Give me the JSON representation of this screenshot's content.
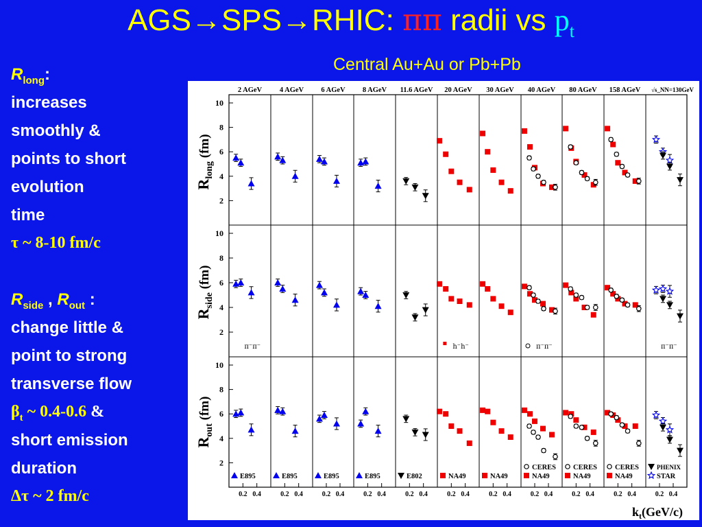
{
  "title": {
    "part1": "AGS",
    "arrow1": "→",
    "part2": "SPS",
    "arrow2": "→",
    "part3": "RHIC: ",
    "pipi": "ππ",
    "radii": " radii vs ",
    "p": "p",
    "t": "t"
  },
  "subtitle": "Central Au+Au or Pb+Pb",
  "text": {
    "rlong_R": "R",
    "rlong_sub": "long",
    "rlong_colon": ":",
    "rlong_lines": [
      "increases",
      "smoothly &",
      "points to short",
      "evolution",
      "time"
    ],
    "tau": "τ ~ 8-10 fm/c",
    "rside_R": "R",
    "rside_sub": "side",
    "comma": " , ",
    "rout_R": "R",
    "rout_sub": "out",
    "colon2": " :",
    "rso_lines": [
      "change little &",
      "point to strong",
      "transverse flow"
    ],
    "beta": "β",
    "beta_sub": "t",
    "beta_val": " ~ 0.4-0.6 ",
    "amp": "&",
    "emission_lines": [
      "short emission",
      "duration"
    ],
    "dtau": "Δτ ~ 2 fm/c"
  },
  "chart_data": {
    "type": "scatter",
    "xlabel": "k",
    "xlabel_sub": "t",
    "xlabel_unit": "(GeV/c)",
    "ylabels": [
      {
        "main": "R",
        "sub": "long",
        "unit": " (fm)"
      },
      {
        "main": "R",
        "sub": "side",
        "unit": " (fm)"
      },
      {
        "main": "R",
        "sub": "out",
        "unit": " (fm)"
      }
    ],
    "yticks": [
      2,
      4,
      6,
      8,
      10
    ],
    "ylim": [
      0,
      10
    ],
    "xticks": [
      0.2,
      0.4
    ],
    "xlim": [
      0,
      0.6
    ],
    "panels": [
      "2 AGeV",
      "4 AGeV",
      "6 AGeV",
      "8 AGeV",
      "11.6 AGeV",
      "20 AGeV",
      "30 AGeV",
      "40 AGeV",
      "80 AGeV",
      "158 AGeV",
      "√s_NN=130GeV"
    ],
    "pion_labels": [
      {
        "col": 0,
        "text": "π⁻π⁻"
      },
      {
        "col": 5,
        "text": "h⁻h⁻"
      },
      {
        "col": 7,
        "text": "π⁻π⁻"
      },
      {
        "col": 10,
        "text": "π⁻π⁻"
      }
    ],
    "series": [
      {
        "name": "E895",
        "marker": "tri-up",
        "color": "#0000ee",
        "columns": [
          0,
          1,
          2,
          3
        ]
      },
      {
        "name": "E802",
        "marker": "tri-down",
        "color": "#000000",
        "columns": [
          4
        ]
      },
      {
        "name": "NA49",
        "marker": "square",
        "color": "#ee0000",
        "columns": [
          5,
          6,
          7,
          8,
          9
        ]
      },
      {
        "name": "CERES",
        "marker": "circle-open",
        "color": "#000000",
        "columns": [
          7,
          8,
          9
        ]
      },
      {
        "name": "PHENIX",
        "marker": "tri-down",
        "color": "#000000",
        "columns": [
          10
        ]
      },
      {
        "name": "STAR",
        "marker": "star-open",
        "color": "#0000ee",
        "columns": [
          10
        ]
      }
    ],
    "points": [
      {
        "col": 0,
        "s": "E895",
        "x": [
          0.1,
          0.17,
          0.32
        ],
        "long": [
          5.5,
          5.1,
          3.4
        ],
        "side": [
          5.9,
          6.0,
          5.2
        ],
        "out": [
          6.0,
          6.1,
          4.7
        ]
      },
      {
        "col": 1,
        "s": "E895",
        "x": [
          0.1,
          0.17,
          0.35
        ],
        "long": [
          5.6,
          5.3,
          4.0
        ],
        "side": [
          6.0,
          5.5,
          4.6
        ],
        "out": [
          6.3,
          6.2,
          4.6
        ]
      },
      {
        "col": 2,
        "s": "E895",
        "x": [
          0.1,
          0.17,
          0.35
        ],
        "long": [
          5.4,
          5.2,
          3.6
        ],
        "side": [
          5.8,
          5.2,
          4.2
        ],
        "out": [
          5.6,
          5.9,
          5.2
        ]
      },
      {
        "col": 3,
        "s": "E895",
        "x": [
          0.1,
          0.17,
          0.35
        ],
        "long": [
          5.1,
          5.2,
          3.2
        ],
        "side": [
          5.3,
          5.0,
          4.1
        ],
        "out": [
          5.2,
          6.2,
          4.6
        ]
      },
      {
        "col": 4,
        "s": "E802",
        "x": [
          0.15,
          0.28,
          0.43
        ],
        "long": [
          3.6,
          3.1,
          2.4
        ],
        "side": [
          5.0,
          3.2,
          3.8
        ],
        "out": [
          5.6,
          4.5,
          4.3
        ]
      },
      {
        "col": 5,
        "s": "NA49",
        "x": [
          0.03,
          0.12,
          0.2,
          0.32,
          0.46
        ],
        "long": [
          6.9,
          5.8,
          4.4,
          3.5,
          2.9
        ],
        "side": [
          5.9,
          5.5,
          4.7,
          4.5,
          4.2
        ],
        "out": [
          6.2,
          6.0,
          5.0,
          4.6,
          3.6
        ]
      },
      {
        "col": 6,
        "s": "NA49",
        "x": [
          0.05,
          0.12,
          0.2,
          0.32,
          0.45
        ],
        "long": [
          7.5,
          6.0,
          4.5,
          3.5,
          2.8
        ],
        "side": [
          5.9,
          5.5,
          4.7,
          4.1,
          3.6
        ],
        "out": [
          6.3,
          6.2,
          5.3,
          4.6,
          4.1
        ]
      },
      {
        "col": 7,
        "s": "NA49",
        "x": [
          0.05,
          0.13,
          0.2,
          0.32,
          0.45
        ],
        "long": [
          7.7,
          6.4,
          4.7,
          3.4,
          3.1
        ],
        "side": [
          5.7,
          5.1,
          4.6,
          4.3,
          3.8
        ],
        "out": [
          6.3,
          6.0,
          5.4,
          4.8,
          4.3
        ]
      },
      {
        "col": 7,
        "s": "CERES",
        "x": [
          0.12,
          0.18,
          0.25,
          0.33,
          0.5
        ],
        "long": [
          5.5,
          4.6,
          4.0,
          3.5,
          3.1
        ],
        "side": [
          5.6,
          5.0,
          4.5,
          3.9,
          3.7
        ],
        "out": [
          5.0,
          4.5,
          4.1,
          3.0,
          2.5
        ]
      },
      {
        "col": 8,
        "s": "NA49",
        "x": [
          0.05,
          0.13,
          0.2,
          0.32,
          0.45
        ],
        "long": [
          7.9,
          6.3,
          5.2,
          4.1,
          3.3
        ],
        "side": [
          5.8,
          5.2,
          4.7,
          4.0,
          3.4
        ],
        "out": [
          6.1,
          6.0,
          5.5,
          4.9,
          4.5
        ]
      },
      {
        "col": 8,
        "s": "CERES",
        "x": [
          0.12,
          0.2,
          0.28,
          0.36,
          0.48
        ],
        "long": [
          6.4,
          5.1,
          4.3,
          3.8,
          3.5
        ],
        "side": [
          5.5,
          5.0,
          4.8,
          4.0,
          4.0
        ],
        "out": [
          5.8,
          5.0,
          4.9,
          4.0,
          3.6
        ]
      },
      {
        "col": 9,
        "s": "NA49",
        "x": [
          0.05,
          0.13,
          0.2,
          0.3,
          0.45
        ],
        "long": [
          7.9,
          6.6,
          5.1,
          4.3,
          3.6
        ],
        "side": [
          5.6,
          5.1,
          4.7,
          4.3,
          4.2
        ],
        "out": [
          6.1,
          5.9,
          5.5,
          5.0,
          5.0
        ]
      },
      {
        "col": 9,
        "s": "CERES",
        "x": [
          0.1,
          0.18,
          0.26,
          0.34,
          0.5
        ],
        "long": [
          7.0,
          5.8,
          4.8,
          4.1,
          3.6
        ],
        "side": [
          5.4,
          4.9,
          4.6,
          4.2,
          3.9
        ],
        "out": [
          6.0,
          5.7,
          5.1,
          4.6,
          3.6
        ]
      },
      {
        "col": 10,
        "s": "STAR",
        "x": [
          0.15,
          0.25,
          0.35
        ],
        "long": [
          7.0,
          6.0,
          5.3
        ],
        "side": [
          5.4,
          5.5,
          5.3
        ],
        "out": [
          5.9,
          5.4,
          4.7
        ]
      },
      {
        "col": 10,
        "s": "PHENIX",
        "x": [
          0.25,
          0.35,
          0.5
        ],
        "long": [
          5.7,
          4.8,
          3.7
        ],
        "side": [
          4.7,
          4.2,
          3.3
        ],
        "out": [
          4.9,
          3.9,
          3.0
        ]
      }
    ],
    "legend": [
      {
        "col": 0,
        "entries": [
          "E895"
        ]
      },
      {
        "col": 1,
        "entries": [
          "E895"
        ]
      },
      {
        "col": 2,
        "entries": [
          "E895"
        ]
      },
      {
        "col": 3,
        "entries": [
          "E895"
        ]
      },
      {
        "col": 4,
        "entries": [
          "E802"
        ]
      },
      {
        "col": 5,
        "entries": [
          "NA49"
        ]
      },
      {
        "col": 6,
        "entries": [
          "NA49"
        ]
      },
      {
        "col": 7,
        "entries": [
          "CERES",
          "NA49"
        ]
      },
      {
        "col": 8,
        "entries": [
          "CERES",
          "NA49"
        ]
      },
      {
        "col": 9,
        "entries": [
          "CERES",
          "NA49"
        ]
      },
      {
        "col": 10,
        "entries": [
          "PHENIX",
          "STAR"
        ]
      }
    ]
  }
}
